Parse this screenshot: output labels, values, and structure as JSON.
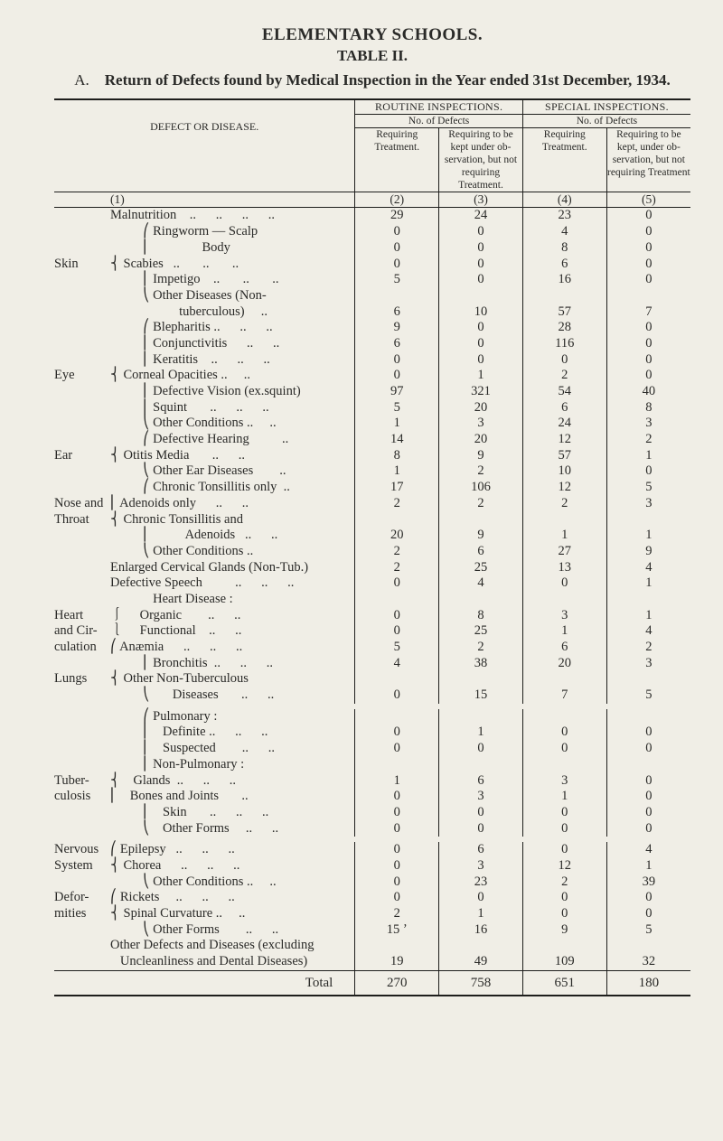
{
  "title1": "ELEMENTARY  SCHOOLS.",
  "title2": "TABLE II.",
  "return_prefix": "A.",
  "return_bold": "Return of Defects found by Medical Inspection in the Year ended 31st December, 1934.",
  "header": {
    "defect_or_disease": "DEFECT OR DISEASE.",
    "routine": "ROUTINE INSPECTIONS.",
    "special": "SPECIAL INSPECTIONS.",
    "no_of_defects": "No. of Defects",
    "req_treat": "Requiring Treatment.",
    "req_tobekept": "Requiring to be kept under ob-servation, but not requiring Treatment.",
    "req_tobekept2": "Requiring to be kept, under ob-servation, but not requiring Treatment",
    "colnums": [
      "(1)",
      "(2)",
      "(3)",
      "(4)",
      "(5)"
    ]
  },
  "rows": [
    {
      "group": "",
      "label": "Malnutrition    ..      ..      ..      ..",
      "v": [
        "29",
        "24",
        "23",
        "0"
      ]
    },
    {
      "group": "",
      "label": "          ⎛ Ringworm — Scalp",
      "v": [
        "0",
        "0",
        "4",
        "0"
      ]
    },
    {
      "group": "",
      "label": "          ⎜                Body",
      "v": [
        "0",
        "0",
        "8",
        "0"
      ]
    },
    {
      "group": "Skin",
      "label": "⎨ Scabies   ..       ..       ..",
      "v": [
        "0",
        "0",
        "6",
        "0"
      ]
    },
    {
      "group": "",
      "label": "          ⎜ Impetigo    ..       ..       ..",
      "v": [
        "5",
        "0",
        "16",
        "0"
      ]
    },
    {
      "group": "",
      "label": "          ⎝ Other Diseases (Non-",
      "v": [
        "",
        "",
        "",
        ""
      ]
    },
    {
      "group": "",
      "label": "                     tuberculous)     ..",
      "v": [
        "6",
        "10",
        "57",
        "7"
      ]
    },
    {
      "group": "",
      "label": "          ⎛ Blepharitis ..      ..      ..",
      "v": [
        "9",
        "0",
        "28",
        "0"
      ]
    },
    {
      "group": "",
      "label": "          ⎜ Conjunctivitis      ..      ..",
      "v": [
        "6",
        "0",
        "116",
        "0"
      ]
    },
    {
      "group": "",
      "label": "          ⎜ Keratitis    ..      ..      ..",
      "v": [
        "0",
        "0",
        "0",
        "0"
      ]
    },
    {
      "group": "Eye",
      "label": "⎨ Corneal Opacities ..     ..",
      "v": [
        "0",
        "1",
        "2",
        "0"
      ]
    },
    {
      "group": "",
      "label": "          ⎜ Defective Vision (ex.squint)",
      "v": [
        "97",
        "321",
        "54",
        "40"
      ]
    },
    {
      "group": "",
      "label": "          ⎜ Squint       ..      ..      ..",
      "v": [
        "5",
        "20",
        "6",
        "8"
      ]
    },
    {
      "group": "",
      "label": "          ⎝ Other Conditions ..     ..",
      "v": [
        "1",
        "3",
        "24",
        "3"
      ]
    },
    {
      "group": "",
      "label": "          ⎛ Defective Hearing          ..",
      "v": [
        "14",
        "20",
        "12",
        "2"
      ]
    },
    {
      "group": "Ear",
      "label": "⎨ Otitis Media       ..      ..",
      "v": [
        "8",
        "9",
        "57",
        "1"
      ]
    },
    {
      "group": "",
      "label": "          ⎝ Other Ear Diseases        ..",
      "v": [
        "1",
        "2",
        "10",
        "0"
      ]
    },
    {
      "group": "",
      "label": "          ⎛ Chronic Tonsillitis only  ..",
      "v": [
        "17",
        "106",
        "12",
        "5"
      ]
    },
    {
      "group": "Nose and",
      "label": "⎜ Adenoids only      ..      ..",
      "v": [
        "2",
        "2",
        "2",
        "3"
      ]
    },
    {
      "group": "Throat",
      "label": "⎨ Chronic Tonsillitis and",
      "v": [
        "",
        "",
        "",
        ""
      ]
    },
    {
      "group": "",
      "label": "          ⎜           Adenoids   ..      ..",
      "v": [
        "20",
        "9",
        "1",
        "1"
      ]
    },
    {
      "group": "",
      "label": "          ⎝ Other Conditions ..",
      "v": [
        "2",
        "6",
        "27",
        "9"
      ]
    },
    {
      "group": "",
      "label": "Enlarged Cervical Glands (Non-Tub.)",
      "v": [
        "2",
        "25",
        "13",
        "4"
      ]
    },
    {
      "group": "",
      "label": "Defective Speech          ..      ..      ..",
      "v": [
        "0",
        "4",
        "0",
        "1"
      ]
    },
    {
      "group": "",
      "label": "             Heart Disease :",
      "v": [
        "",
        "",
        "",
        ""
      ]
    },
    {
      "group": "Heart",
      "label": "⎰     Organic        ..      ..",
      "v": [
        "0",
        "8",
        "3",
        "1"
      ]
    },
    {
      "group": "and Cir-",
      "label": "⎱     Functional    ..      ..",
      "v": [
        "0",
        "25",
        "1",
        "4"
      ]
    },
    {
      "group": "culation",
      "label": "⎛ Anæmia      ..      ..      ..",
      "v": [
        "5",
        "2",
        "6",
        "2"
      ]
    },
    {
      "group": "",
      "label": "          ⎜ Bronchitis  ..      ..      ..",
      "v": [
        "4",
        "38",
        "20",
        "3"
      ]
    },
    {
      "group": "Lungs",
      "label": "⎨ Other Non-Tuberculous",
      "v": [
        "",
        "",
        "",
        ""
      ]
    },
    {
      "group": "",
      "label": "          ⎝       Diseases       ..      ..",
      "v": [
        "0",
        "15",
        "7",
        "5"
      ]
    },
    {
      "gap": true
    },
    {
      "group": "",
      "label": "          ⎛ Pulmonary :",
      "v": [
        "",
        "",
        "",
        ""
      ]
    },
    {
      "group": "",
      "label": "          ⎜    Definite ..      ..      ..",
      "v": [
        "0",
        "1",
        "0",
        "0"
      ]
    },
    {
      "group": "",
      "label": "          ⎜    Suspected        ..      ..",
      "v": [
        "0",
        "0",
        "0",
        "0"
      ]
    },
    {
      "group": "",
      "label": "          ⎜ Non-Pulmonary :",
      "v": [
        "",
        "",
        "",
        ""
      ]
    },
    {
      "group": "Tuber-",
      "label": "⎨    Glands  ..      ..      ..",
      "v": [
        "1",
        "6",
        "3",
        "0"
      ]
    },
    {
      "group": "culosis",
      "label": "⎜    Bones and Joints       ..",
      "v": [
        "0",
        "3",
        "1",
        "0"
      ]
    },
    {
      "group": "",
      "label": "          ⎜    Skin       ..      ..      ..",
      "v": [
        "0",
        "0",
        "0",
        "0"
      ]
    },
    {
      "group": "",
      "label": "          ⎝    Other Forms     ..      ..",
      "v": [
        "0",
        "0",
        "0",
        "0"
      ]
    },
    {
      "gap": true
    },
    {
      "group": "Nervous",
      "label": "⎛ Epilepsy   ..      ..      ..",
      "v": [
        "0",
        "6",
        "0",
        "4"
      ]
    },
    {
      "group": "System",
      "label": "⎨ Chorea      ..      ..      ..",
      "v": [
        "0",
        "3",
        "12",
        "1"
      ]
    },
    {
      "group": "",
      "label": "          ⎝ Other Conditions ..     ..",
      "v": [
        "0",
        "23",
        "2",
        "39"
      ]
    },
    {
      "group": "Defor-",
      "label": "⎛ Rickets     ..      ..      ..",
      "v": [
        "0",
        "0",
        "0",
        "0"
      ]
    },
    {
      "group": "mities",
      "label": "⎨ Spinal Curvature ..     ..",
      "v": [
        "2",
        "1",
        "0",
        "0"
      ]
    },
    {
      "group": "",
      "label": "          ⎝ Other Forms        ..      ..",
      "v": [
        "15 ʼ",
        "16",
        "9",
        "5"
      ]
    },
    {
      "group": "",
      "label": "Other Defects and Diseases (excluding",
      "v": [
        "",
        "",
        "",
        ""
      ]
    },
    {
      "group": "",
      "label": "   Uncleanliness and Dental Diseases)",
      "v": [
        "19",
        "49",
        "109",
        "32"
      ]
    }
  ],
  "total": {
    "label": "Total",
    "v": [
      "270",
      "758",
      "651",
      "180"
    ]
  }
}
